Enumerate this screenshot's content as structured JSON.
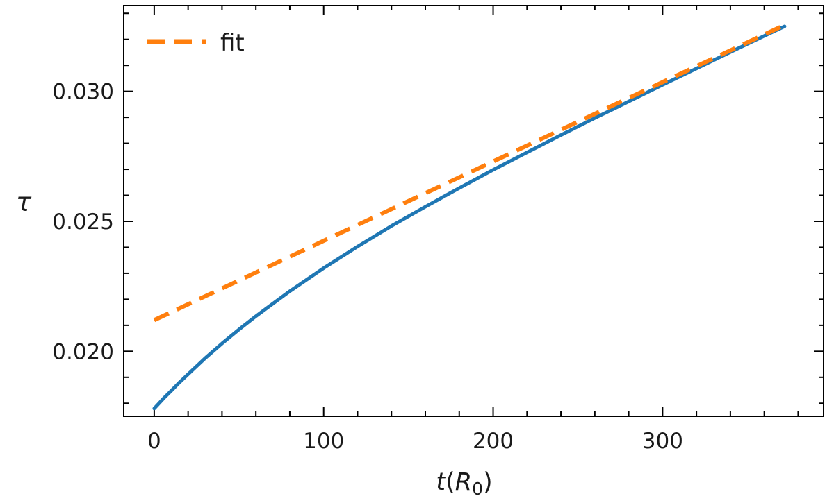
{
  "chart_data": {
    "type": "line",
    "title": "",
    "xlabel": "t(R0)",
    "xlabel_parts": [
      {
        "text": "t",
        "style": "italic"
      },
      {
        "text": "(",
        "style": "normal"
      },
      {
        "text": "R",
        "style": "italic"
      },
      {
        "text": "0",
        "style": "sub"
      },
      {
        "text": ")",
        "style": "normal"
      }
    ],
    "ylabel": "τ",
    "xlim": [
      -18,
      395
    ],
    "ylim": [
      0.0175,
      0.0333
    ],
    "x_ticks": [
      0,
      100,
      200,
      300
    ],
    "x_tick_labels": [
      "0",
      "100",
      "200",
      "300"
    ],
    "x_minor_step": 20,
    "y_ticks": [
      0.02,
      0.025,
      0.03
    ],
    "y_tick_labels": [
      "0.020",
      "0.025",
      "0.030"
    ],
    "y_minor_step": 0.001,
    "grid": false,
    "tick_direction": "in",
    "ticks_all_sides": true,
    "legend": {
      "position": "upper-left",
      "entries": [
        "fit"
      ]
    },
    "series": [
      {
        "name": "simulation",
        "color": "#1f77b4",
        "style": "solid",
        "width": 5,
        "x": [
          0,
          3,
          6,
          10,
          15,
          20,
          30,
          40,
          50,
          60,
          80,
          100,
          120,
          140,
          160,
          180,
          200,
          220,
          240,
          260,
          280,
          300,
          320,
          340,
          360,
          372
        ],
        "y": [
          0.0178,
          0.01801,
          0.01822,
          0.01848,
          0.01881,
          0.01912,
          0.01973,
          0.0203,
          0.02084,
          0.02135,
          0.02231,
          0.0232,
          0.02403,
          0.02482,
          0.02556,
          0.02628,
          0.02698,
          0.02765,
          0.02832,
          0.02897,
          0.02961,
          0.03025,
          0.03088,
          0.03151,
          0.03213,
          0.0325
        ]
      },
      {
        "name": "fit",
        "color": "#ff7f0e",
        "style": "dashed",
        "width": 6,
        "dash": "23 13",
        "x": [
          0,
          372
        ],
        "y": [
          0.0212,
          0.03255
        ]
      }
    ]
  }
}
